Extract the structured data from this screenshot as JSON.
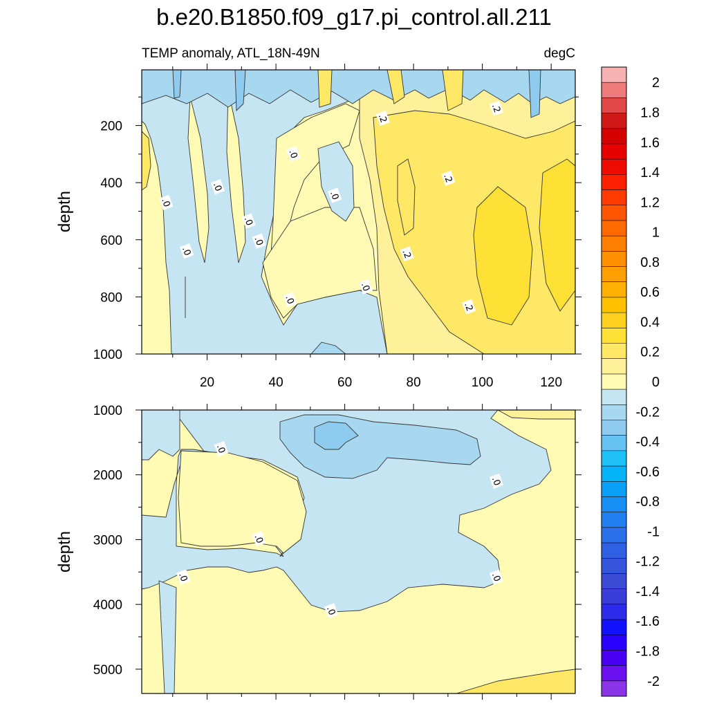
{
  "chart_data": {
    "type": "contour",
    "title": "b.e20.B1850.f09_g17.pi_control.all.211",
    "subtitle_left": "TEMP anomaly, ATL_18N-49N",
    "subtitle_right": "degC",
    "panels": [
      {
        "name": "upper",
        "ylabel": "depth",
        "xlim": [
          1,
          127
        ],
        "ylim": [
          1000,
          5
        ],
        "y_reversed": true,
        "xticks": [
          20,
          40,
          60,
          80,
          100,
          120
        ],
        "yticks": [
          200,
          400,
          600,
          800,
          1000
        ],
        "contour_labels": [
          {
            "text": ".0",
            "x": 8,
            "y": 470
          },
          {
            "text": ".0",
            "x": 14,
            "y": 640
          },
          {
            "text": ".0",
            "x": 23,
            "y": 415
          },
          {
            "text": ".0",
            "x": 32,
            "y": 535
          },
          {
            "text": ".0",
            "x": 35,
            "y": 605
          },
          {
            "text": ".0",
            "x": 44,
            "y": 810
          },
          {
            "text": ".0",
            "x": 45,
            "y": 300
          },
          {
            "text": ".0",
            "x": 57,
            "y": 445
          },
          {
            "text": ".0",
            "x": 66,
            "y": 765
          },
          {
            "text": ".2",
            "x": 71,
            "y": 175
          },
          {
            "text": ".2",
            "x": 78,
            "y": 650
          },
          {
            "text": ".2",
            "x": 90,
            "y": 385
          },
          {
            "text": ".2",
            "x": 96,
            "y": 835
          },
          {
            "text": ".2",
            "x": 104,
            "y": 140
          }
        ]
      },
      {
        "name": "lower",
        "ylabel": "depth",
        "xlim": [
          1,
          127
        ],
        "ylim": [
          5375,
          1000
        ],
        "y_reversed": true,
        "xticks": [
          20,
          40,
          60,
          80,
          100,
          120
        ],
        "yticks": [
          1000,
          2000,
          3000,
          4000,
          5000
        ],
        "contour_labels": [
          {
            "text": ".0",
            "x": 24,
            "y": 1600
          },
          {
            "text": ".0",
            "x": 35,
            "y": 2990
          },
          {
            "text": ".0",
            "x": 13,
            "y": 3580
          },
          {
            "text": ".0",
            "x": 56,
            "y": 4100
          },
          {
            "text": ".0",
            "x": 104,
            "y": 2100
          },
          {
            "text": ".0",
            "x": 104,
            "y": 3580
          }
        ]
      }
    ],
    "colorbar": {
      "levels": [
        2,
        1.8,
        1.6,
        1.4,
        1.2,
        1,
        0.8,
        0.6,
        0.4,
        0.2,
        0,
        -0.2,
        -0.4,
        -0.6,
        -0.8,
        -1,
        -1.2,
        -1.4,
        -1.6,
        -1.8,
        -2
      ],
      "labels": [
        "2",
        "1.8",
        "1.6",
        "1.4",
        "1.2",
        "1",
        "0.8",
        "0.6",
        "0.4",
        "0.2",
        "0",
        "-0.2",
        "-0.4",
        "-0.6",
        "-0.8",
        "-1",
        "-1.2",
        "-1.4",
        "-1.6",
        "-1.8",
        "-2"
      ],
      "colors": [
        "#f6b1b1",
        "#ee7a7a",
        "#e14848",
        "#d01818",
        "#d50000",
        "#e60000",
        "#ef0b00",
        "#fb2000",
        "#ff3a00",
        "#ff5500",
        "#ff6a00",
        "#ff7f00",
        "#ff9000",
        "#ffa000",
        "#ffb000",
        "#ffc000",
        "#fdd020",
        "#ffe034",
        "#fee866",
        "#fff09a",
        "#fffbb4",
        "#c6e5f3",
        "#a7d8ef",
        "#8ecbef",
        "#66c2f2",
        "#1ec0f5",
        "#05b3f8",
        "#0aa0f7",
        "#1690f5",
        "#2080f2",
        "#2a70eb",
        "#2f60e4",
        "#3556dc",
        "#3b4bd5",
        "#3a3ed8",
        "#2c2ce8",
        "#1212ff",
        "#2a00ff",
        "#4800f2",
        "#6a10ee",
        "#8a36e8"
      ]
    }
  }
}
